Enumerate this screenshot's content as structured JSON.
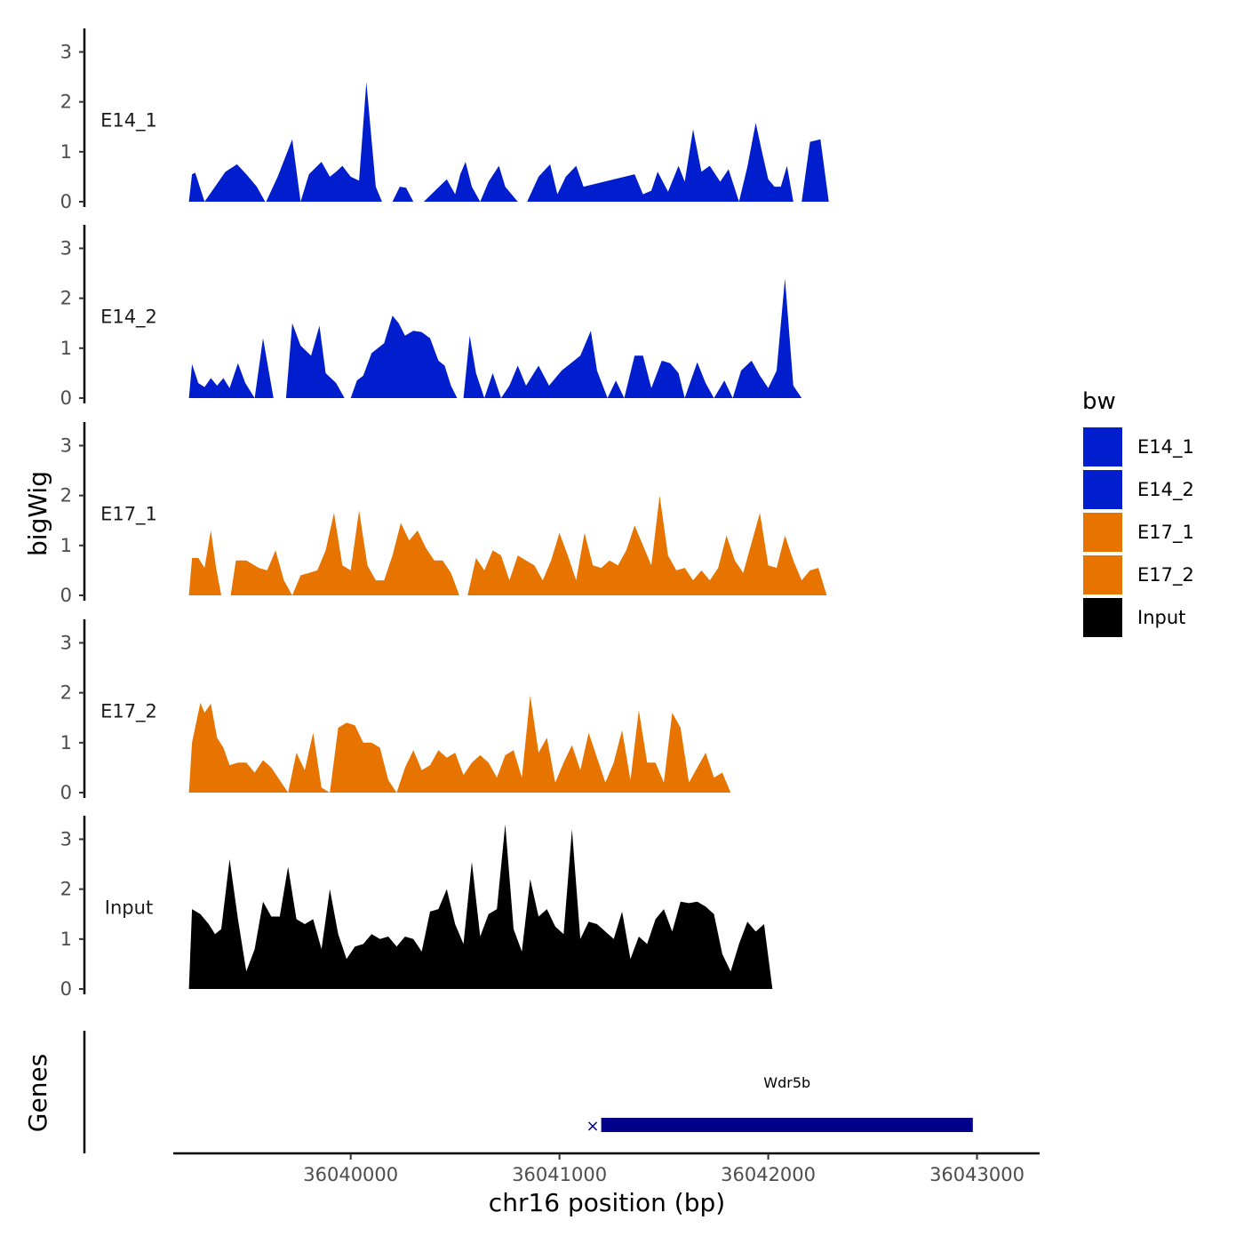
{
  "chart_data": {
    "type": "area",
    "chromosome": "chr16",
    "xlabel": "chr16 position (bp)",
    "ylabel": "bigWig",
    "genes_label": "Genes",
    "xlim": [
      36039150,
      36043300
    ],
    "ylim": [
      0,
      3.4
    ],
    "x_ticks": [
      36040000,
      36041000,
      36042000,
      36043000
    ],
    "x_tick_labels": [
      "36040000",
      "36041000",
      "36042000",
      "36043000"
    ],
    "y_ticks": [
      0,
      1,
      2,
      3
    ],
    "y_tick_labels": [
      "0",
      "1",
      "2",
      "3"
    ],
    "legend": {
      "title": "bw",
      "entries": [
        {
          "label": "E14_1",
          "color": "#001ECD"
        },
        {
          "label": "E14_2",
          "color": "#001ECD"
        },
        {
          "label": "E17_1",
          "color": "#E87400"
        },
        {
          "label": "E17_2",
          "color": "#E87400"
        },
        {
          "label": "Input",
          "color": "#000000"
        }
      ]
    },
    "series": [
      {
        "name": "E14_1",
        "color": "#001ECD",
        "x": [
          36039225,
          36039240,
          36039255,
          36039300,
          36039350,
          36039400,
          36039455,
          36039500,
          36039550,
          36039590,
          36039595,
          36039650,
          36039720,
          36039760,
          36039800,
          36039860,
          36039900,
          36039930,
          36039960,
          36040000,
          36040040,
          36040075,
          36040120,
          36040150,
          36040200,
          36040235,
          36040265,
          36040300,
          36040335,
          36040350,
          36040460,
          36040500,
          36040525,
          36040550,
          36040580,
          36040620,
          36040660,
          36040710,
          36040740,
          36040800,
          36040845,
          36040900,
          36040955,
          36040990,
          36041030,
          36041080,
          36041115,
          36041360,
          36041400,
          36041440,
          36041470,
          36041520,
          36041570,
          36041600,
          36041640,
          36041680,
          36041720,
          36041770,
          36041810,
          36041860,
          36041900,
          36041940,
          36041970,
          36042000,
          36042030,
          36042060,
          36042090,
          36042120,
          36042160,
          36042200,
          36042250,
          36042290,
          36042340,
          36042380,
          36042420,
          36042460,
          36042500,
          36042540,
          36042590,
          36042640,
          36042690,
          36042720,
          36042760,
          36042810,
          36042830,
          36042880,
          36042920,
          36042950,
          36042980
        ],
        "values": [
          0,
          0.55,
          0.58,
          0,
          0.3,
          0.6,
          0.75,
          0.55,
          0.3,
          0,
          0,
          0.5,
          1.25,
          0,
          0.55,
          0.8,
          0.5,
          0.6,
          0.72,
          0.5,
          0.42,
          2.4,
          0.3,
          0,
          0,
          0.3,
          0.28,
          0,
          0,
          0,
          0.45,
          0.15,
          0.55,
          0.8,
          0.3,
          0,
          0.4,
          0.72,
          0.3,
          0,
          0,
          0.5,
          0.75,
          0.15,
          0.5,
          0.72,
          0.3,
          0.55,
          0.15,
          0.22,
          0.6,
          0.2,
          0.72,
          0.4,
          1.45,
          0.6,
          0.72,
          0.4,
          0.65,
          0,
          0.7,
          1.58,
          1,
          0.45,
          0.3,
          0.3,
          0.72,
          0,
          0,
          1.2,
          1.25,
          0,
          0,
          0,
          0,
          0,
          0,
          0,
          0,
          0,
          0,
          0,
          0,
          0,
          0,
          0,
          0,
          0,
          0
        ]
      },
      {
        "name": "E14_2",
        "color": "#001ECD",
        "x": [
          36039225,
          36039240,
          36039270,
          36039300,
          36039330,
          36039360,
          36039390,
          36039420,
          36039460,
          36039495,
          36039540,
          36039580,
          36039630,
          36039690,
          36039720,
          36039760,
          36039810,
          36039850,
          36039880,
          36039930,
          36039970,
          36040000,
          36040030,
          36040060,
          36040100,
          36040160,
          36040200,
          36040230,
          36040260,
          36040300,
          36040340,
          36040380,
          36040420,
          36040450,
          36040480,
          36040510,
          36040540,
          36040570,
          36040600,
          36040640,
          36040680,
          36040720,
          36040760,
          36040800,
          36040840,
          36040900,
          36040950,
          36041010,
          36041100,
          36041150,
          36041180,
          36041230,
          36041270,
          36041310,
          36041360,
          36041400,
          36041440,
          36041490,
          36041530,
          36041570,
          36041600,
          36041660,
          36041700,
          36041740,
          36041790,
          36041830,
          36041870,
          36041920,
          36041960,
          36042000,
          36042040,
          36042080,
          36042120,
          36042160,
          36042200,
          36042240,
          36042280,
          36042320,
          36042360,
          36042400,
          36042440,
          36042490,
          36042530,
          36042570,
          36042620,
          36042660,
          36042700,
          36042740,
          36042770,
          36042790,
          36042810,
          36042830,
          36042860,
          36042890,
          36042930,
          36042960
        ],
        "values": [
          0,
          0.68,
          0.3,
          0.22,
          0.4,
          0.25,
          0.4,
          0.2,
          0.7,
          0.3,
          0,
          1.2,
          0,
          0,
          1.5,
          1.05,
          0.85,
          1.45,
          0.5,
          0.3,
          0,
          0,
          0.35,
          0.45,
          0.9,
          1.1,
          1.65,
          1.5,
          1.25,
          1.35,
          1.32,
          1.2,
          0.75,
          0.65,
          0.25,
          0,
          0,
          1.25,
          0.5,
          0,
          0.5,
          0,
          0.25,
          0.65,
          0.25,
          0.65,
          0.25,
          0.55,
          0.85,
          1.35,
          0.55,
          0,
          0.35,
          0,
          0.85,
          0.85,
          0.2,
          0.75,
          0.7,
          0.5,
          0,
          0.72,
          0.3,
          0,
          0.35,
          0,
          0.55,
          0.75,
          0.45,
          0.2,
          0.55,
          2.4,
          0.25,
          0,
          0,
          0,
          0,
          0,
          0,
          0,
          0,
          0,
          0,
          0,
          0,
          0,
          0,
          0,
          0,
          0,
          0,
          0,
          0,
          0,
          0,
          0
        ]
      },
      {
        "name": "E17_1",
        "color": "#E87400",
        "x": [
          36039225,
          36039240,
          36039270,
          36039300,
          36039330,
          36039355,
          36039380,
          36039400,
          36039425,
          36039450,
          36039500,
          36039560,
          36039600,
          36039640,
          36039680,
          36039720,
          36039760,
          36039800,
          36039840,
          36039880,
          36039920,
          36039960,
          36040000,
          36040040,
          36040080,
          36040120,
          36040160,
          36040200,
          36040240,
          36040280,
          36040320,
          36040360,
          36040400,
          36040440,
          36040480,
          36040520,
          36040560,
          36040600,
          36040640,
          36040680,
          36040720,
          36040760,
          36040800,
          36040840,
          36040880,
          36040920,
          36040960,
          36041000,
          36041040,
          36041080,
          36041120,
          36041160,
          36041200,
          36041240,
          36041280,
          36041320,
          36041360,
          36041400,
          36041440,
          36041480,
          36041520,
          36041560,
          36041600,
          36041640,
          36041680,
          36041720,
          36041760,
          36041800,
          36041840,
          36041880,
          36041920,
          36041960,
          36042000,
          36042040,
          36042080,
          36042120,
          36042160,
          36042200,
          36042240,
          36042280,
          36042320,
          36042360,
          36042400,
          36042440,
          36042480,
          36042520,
          36042560,
          36042600,
          36042640,
          36042680,
          36042720,
          36042760,
          36042800,
          36042840,
          36042880,
          36042920,
          36042950
        ],
        "values": [
          0,
          0.75,
          0.75,
          0.55,
          1.3,
          0.55,
          0,
          0,
          0,
          0.7,
          0.7,
          0.55,
          0.5,
          0.9,
          0.3,
          0,
          0.4,
          0.45,
          0.5,
          0.9,
          1.65,
          0.6,
          0.5,
          1.7,
          0.6,
          0.3,
          0.3,
          0.8,
          1.45,
          1.1,
          1.3,
          0.95,
          0.7,
          0.7,
          0.45,
          0,
          0,
          0.75,
          0.5,
          0.9,
          0.8,
          0.3,
          0.8,
          0.7,
          0.6,
          0.3,
          0.7,
          1.25,
          0.8,
          0.3,
          1.25,
          0.6,
          0.55,
          0.7,
          0.6,
          0.9,
          1.4,
          1,
          0.6,
          2.0,
          0.8,
          0.5,
          0.55,
          0.3,
          0.5,
          0.3,
          0.55,
          1.2,
          0.7,
          0.45,
          1.05,
          1.65,
          0.6,
          0.55,
          1.2,
          0.7,
          0.3,
          0.5,
          0.55,
          0,
          0,
          0,
          0,
          0,
          0,
          0,
          0,
          0,
          0,
          0,
          0,
          0,
          0,
          0,
          0,
          0,
          0
        ]
      },
      {
        "name": "E17_2",
        "color": "#E87400",
        "x": [
          36039225,
          36039240,
          36039280,
          36039300,
          36039330,
          36039360,
          36039390,
          36039420,
          36039460,
          36039500,
          36039540,
          36039580,
          36039620,
          36039660,
          36039700,
          36039740,
          36039780,
          36039820,
          36039860,
          36039900,
          36039940,
          36039980,
          36040020,
          36040060,
          36040100,
          36040140,
          36040180,
          36040220,
          36040260,
          36040300,
          36040340,
          36040380,
          36040420,
          36040460,
          36040500,
          36040540,
          36040580,
          36040620,
          36040660,
          36040700,
          36040740,
          36040780,
          36040820,
          36040860,
          36040900,
          36040940,
          36040980,
          36041020,
          36041060,
          36041100,
          36041140,
          36041180,
          36041220,
          36041260,
          36041300,
          36041340,
          36041380,
          36041420,
          36041460,
          36041500,
          36041540,
          36041580,
          36041620,
          36041660,
          36041700,
          36041740,
          36041780,
          36041820,
          36041860,
          36041900,
          36041940,
          36041980,
          36042020,
          36042060,
          36042100,
          36042140,
          36042180,
          36042220,
          36042260,
          36042300,
          36042340,
          36042380,
          36042420,
          36042460,
          36042500,
          36042540,
          36042580,
          36042620,
          36042660,
          36042700,
          36042740,
          36042780,
          36042820,
          36042860,
          36042900,
          36042950
        ],
        "values": [
          0,
          1.0,
          1.8,
          1.6,
          1.78,
          1.1,
          0.9,
          0.55,
          0.6,
          0.6,
          0.4,
          0.65,
          0.5,
          0.25,
          0,
          0.8,
          0.45,
          1.2,
          0.1,
          0,
          1.3,
          1.4,
          1.35,
          1.0,
          1.0,
          0.9,
          0.25,
          0,
          0.5,
          0.85,
          0.45,
          0.55,
          0.85,
          0.7,
          0.8,
          0.35,
          0.6,
          0.75,
          0.6,
          0.3,
          0.75,
          0.85,
          0.3,
          1.95,
          0.8,
          1.1,
          0.2,
          0.6,
          0.95,
          0.45,
          1.2,
          0.7,
          0.2,
          0.6,
          1.25,
          0.25,
          1.65,
          0.6,
          0.6,
          0.2,
          1.6,
          1.3,
          0.2,
          0.5,
          0.8,
          0.3,
          0.4,
          0,
          0,
          0,
          0,
          0,
          0,
          0,
          0,
          0,
          0,
          0,
          0,
          0,
          0,
          0,
          0,
          0,
          0,
          0,
          0,
          0,
          0,
          0,
          0,
          0,
          0,
          0,
          0,
          0
        ]
      },
      {
        "name": "Input",
        "color": "#000000",
        "x": [
          36039225,
          36039240,
          36039280,
          36039320,
          36039350,
          36039380,
          36039420,
          36039460,
          36039500,
          36039540,
          36039580,
          36039620,
          36039660,
          36039700,
          36039740,
          36039780,
          36039820,
          36039860,
          36039900,
          36039940,
          36039980,
          36040020,
          36040060,
          36040100,
          36040140,
          36040180,
          36040220,
          36040260,
          36040300,
          36040340,
          36040380,
          36040420,
          36040460,
          36040500,
          36040540,
          36040580,
          36040620,
          36040660,
          36040700,
          36040740,
          36040780,
          36040820,
          36040860,
          36040900,
          36040940,
          36040980,
          36041020,
          36041060,
          36041100,
          36041140,
          36041180,
          36041220,
          36041260,
          36041300,
          36041340,
          36041380,
          36041420,
          36041460,
          36041500,
          36041540,
          36041580,
          36041620,
          36041660,
          36041700,
          36041740,
          36041780,
          36041820,
          36041860,
          36041900,
          36041940,
          36041980,
          36042020,
          36042060,
          36042100,
          36042140,
          36042180,
          36042220,
          36042260,
          36042300,
          36042340,
          36042380,
          36042420,
          36042460,
          36042500,
          36042540,
          36042580,
          36042620,
          36042660,
          36042700,
          36042740,
          36042780,
          36042820,
          36042860,
          36042900,
          36042940,
          36042950
        ],
        "values": [
          0,
          1.6,
          1.5,
          1.3,
          1.1,
          1.2,
          2.6,
          1.4,
          0.35,
          0.8,
          1.75,
          1.45,
          1.45,
          2.45,
          1.4,
          1.3,
          1.4,
          0.8,
          2.0,
          1.1,
          0.6,
          0.85,
          0.9,
          1.1,
          1.0,
          1.05,
          0.85,
          1.05,
          1.0,
          0.75,
          1.55,
          1.6,
          2.0,
          1.3,
          0.9,
          2.55,
          1.05,
          1.5,
          1.6,
          3.3,
          1.2,
          0.75,
          2.2,
          1.45,
          1.6,
          1.25,
          1.1,
          3.2,
          1.0,
          1.35,
          1.3,
          1.15,
          1.0,
          1.55,
          0.6,
          1.05,
          0.9,
          1.4,
          1.6,
          1.15,
          1.75,
          1.72,
          1.75,
          1.65,
          1.5,
          0.7,
          0.35,
          0.9,
          1.35,
          1.15,
          1.3,
          0,
          0,
          0,
          0,
          0,
          0,
          0,
          0,
          0,
          0,
          0,
          0,
          0,
          0,
          0,
          0,
          0,
          0,
          0,
          0,
          0,
          0,
          0,
          0,
          0
        ]
      }
    ],
    "genes": [
      {
        "name": "Wdr5b",
        "start": 36041200,
        "end": 36042980,
        "strand": "-",
        "color": "#00008B"
      }
    ]
  }
}
